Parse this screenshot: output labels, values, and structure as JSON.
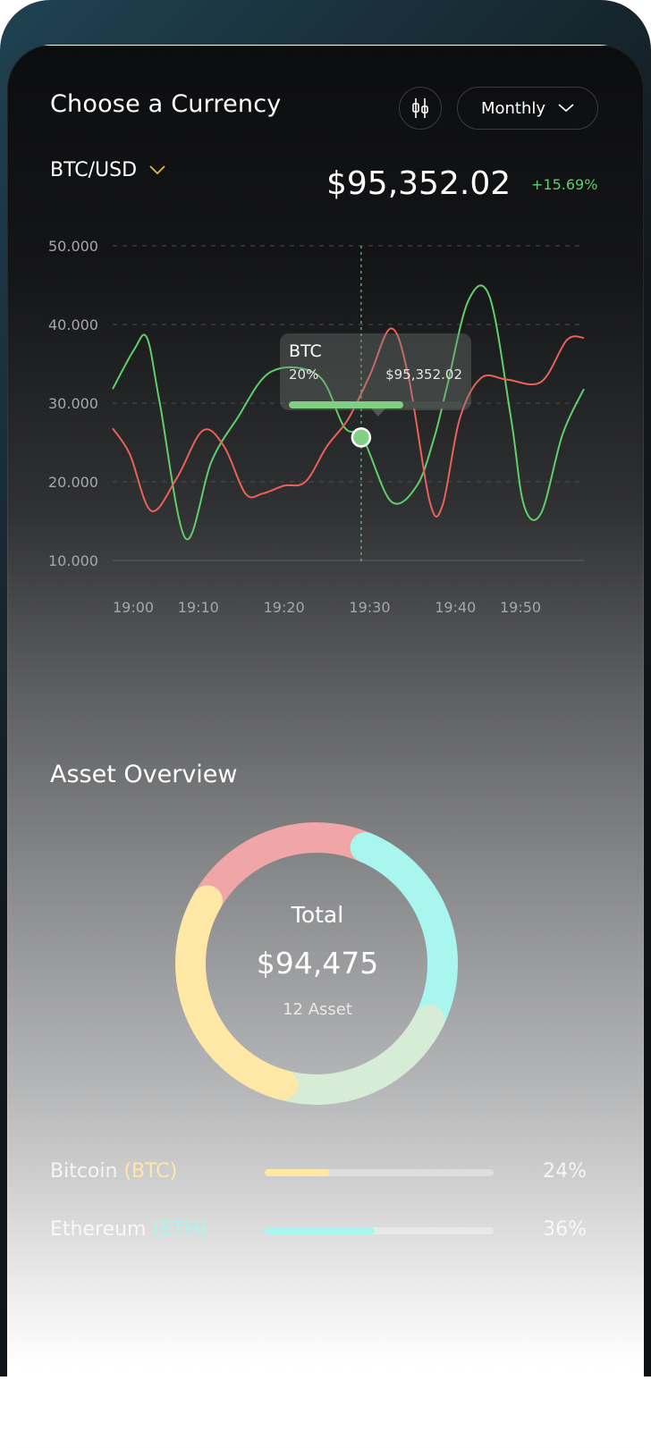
{
  "header": {
    "title": "Choose a Currency",
    "period_label": "Monthly",
    "pair_label": "BTC/USD",
    "price": "$95,352.02",
    "change": "+15.69%"
  },
  "colors": {
    "green": "#5fcf6b",
    "red": "#e8625a",
    "accent_yellow": "#e6b93a",
    "tooltip_fill": "#7fd083"
  },
  "tooltip": {
    "title": "BTC",
    "percent": "20%",
    "value": "$95,352.02",
    "progress": 0.66
  },
  "chart_data": {
    "type": "line",
    "x": [
      "19:00",
      "19:10",
      "19:20",
      "19:30",
      "19:40",
      "19:50"
    ],
    "ylim": [
      10000,
      50000
    ],
    "y_ticks": [
      "50.000",
      "40.000",
      "30.000",
      "20.000",
      "10.000"
    ],
    "grid": true,
    "highlight_x": 29.0,
    "series": [
      {
        "color": "#5fcf6b",
        "points": [
          [
            0,
            31800
          ],
          [
            2.5,
            36800
          ],
          [
            4,
            38300
          ],
          [
            5.5,
            30000
          ],
          [
            8.5,
            12800
          ],
          [
            11.5,
            22500
          ],
          [
            14.5,
            28000
          ],
          [
            18.5,
            34000
          ],
          [
            24,
            33500
          ],
          [
            27,
            27000
          ],
          [
            29.2,
            25500
          ],
          [
            32.5,
            17500
          ],
          [
            35.5,
            19500
          ],
          [
            37.5,
            25500
          ],
          [
            39,
            32000
          ],
          [
            41.5,
            43000
          ],
          [
            44,
            43500
          ],
          [
            46.5,
            28000
          ],
          [
            48,
            17000
          ],
          [
            50,
            16000
          ],
          [
            52.5,
            26000
          ],
          [
            55,
            31800
          ]
        ]
      },
      {
        "color": "#e8625a",
        "points": [
          [
            0,
            26800
          ],
          [
            2,
            23500
          ],
          [
            4.5,
            16300
          ],
          [
            7.5,
            20500
          ],
          [
            10.5,
            26500
          ],
          [
            13,
            24500
          ],
          [
            15.5,
            18500
          ],
          [
            17.5,
            18500
          ],
          [
            20,
            19500
          ],
          [
            22.5,
            20000
          ],
          [
            25,
            24500
          ],
          [
            27.5,
            28000
          ],
          [
            30,
            33500
          ],
          [
            32.5,
            39500
          ],
          [
            34.5,
            33500
          ],
          [
            37,
            17500
          ],
          [
            38.5,
            17000
          ],
          [
            40.5,
            28000
          ],
          [
            43,
            33200
          ],
          [
            46,
            33000
          ],
          [
            50,
            32700
          ],
          [
            53,
            38000
          ],
          [
            55,
            38300
          ]
        ]
      }
    ]
  },
  "overview": {
    "title": "Asset Overview",
    "total_label": "Total",
    "total_value": "$94,475",
    "asset_count": "12 Asset",
    "donut_segments": [
      {
        "color": "#f0a6a6",
        "fraction": 0.23
      },
      {
        "color": "#a8f6ee",
        "fraction": 0.26
      },
      {
        "color": "#d7ecd6",
        "fraction": 0.22
      },
      {
        "color": "#ffe7a6",
        "fraction": 0.22
      }
    ],
    "assets": [
      {
        "name": "Bitcoin",
        "ticker": "(BTC)",
        "percent": "24%",
        "value": 0.28,
        "color": "#ffe7a6"
      },
      {
        "name": "Ethereum",
        "ticker": "(ETH)",
        "percent": "36%",
        "value": 0.48,
        "color": "#a8f6ee"
      }
    ]
  }
}
